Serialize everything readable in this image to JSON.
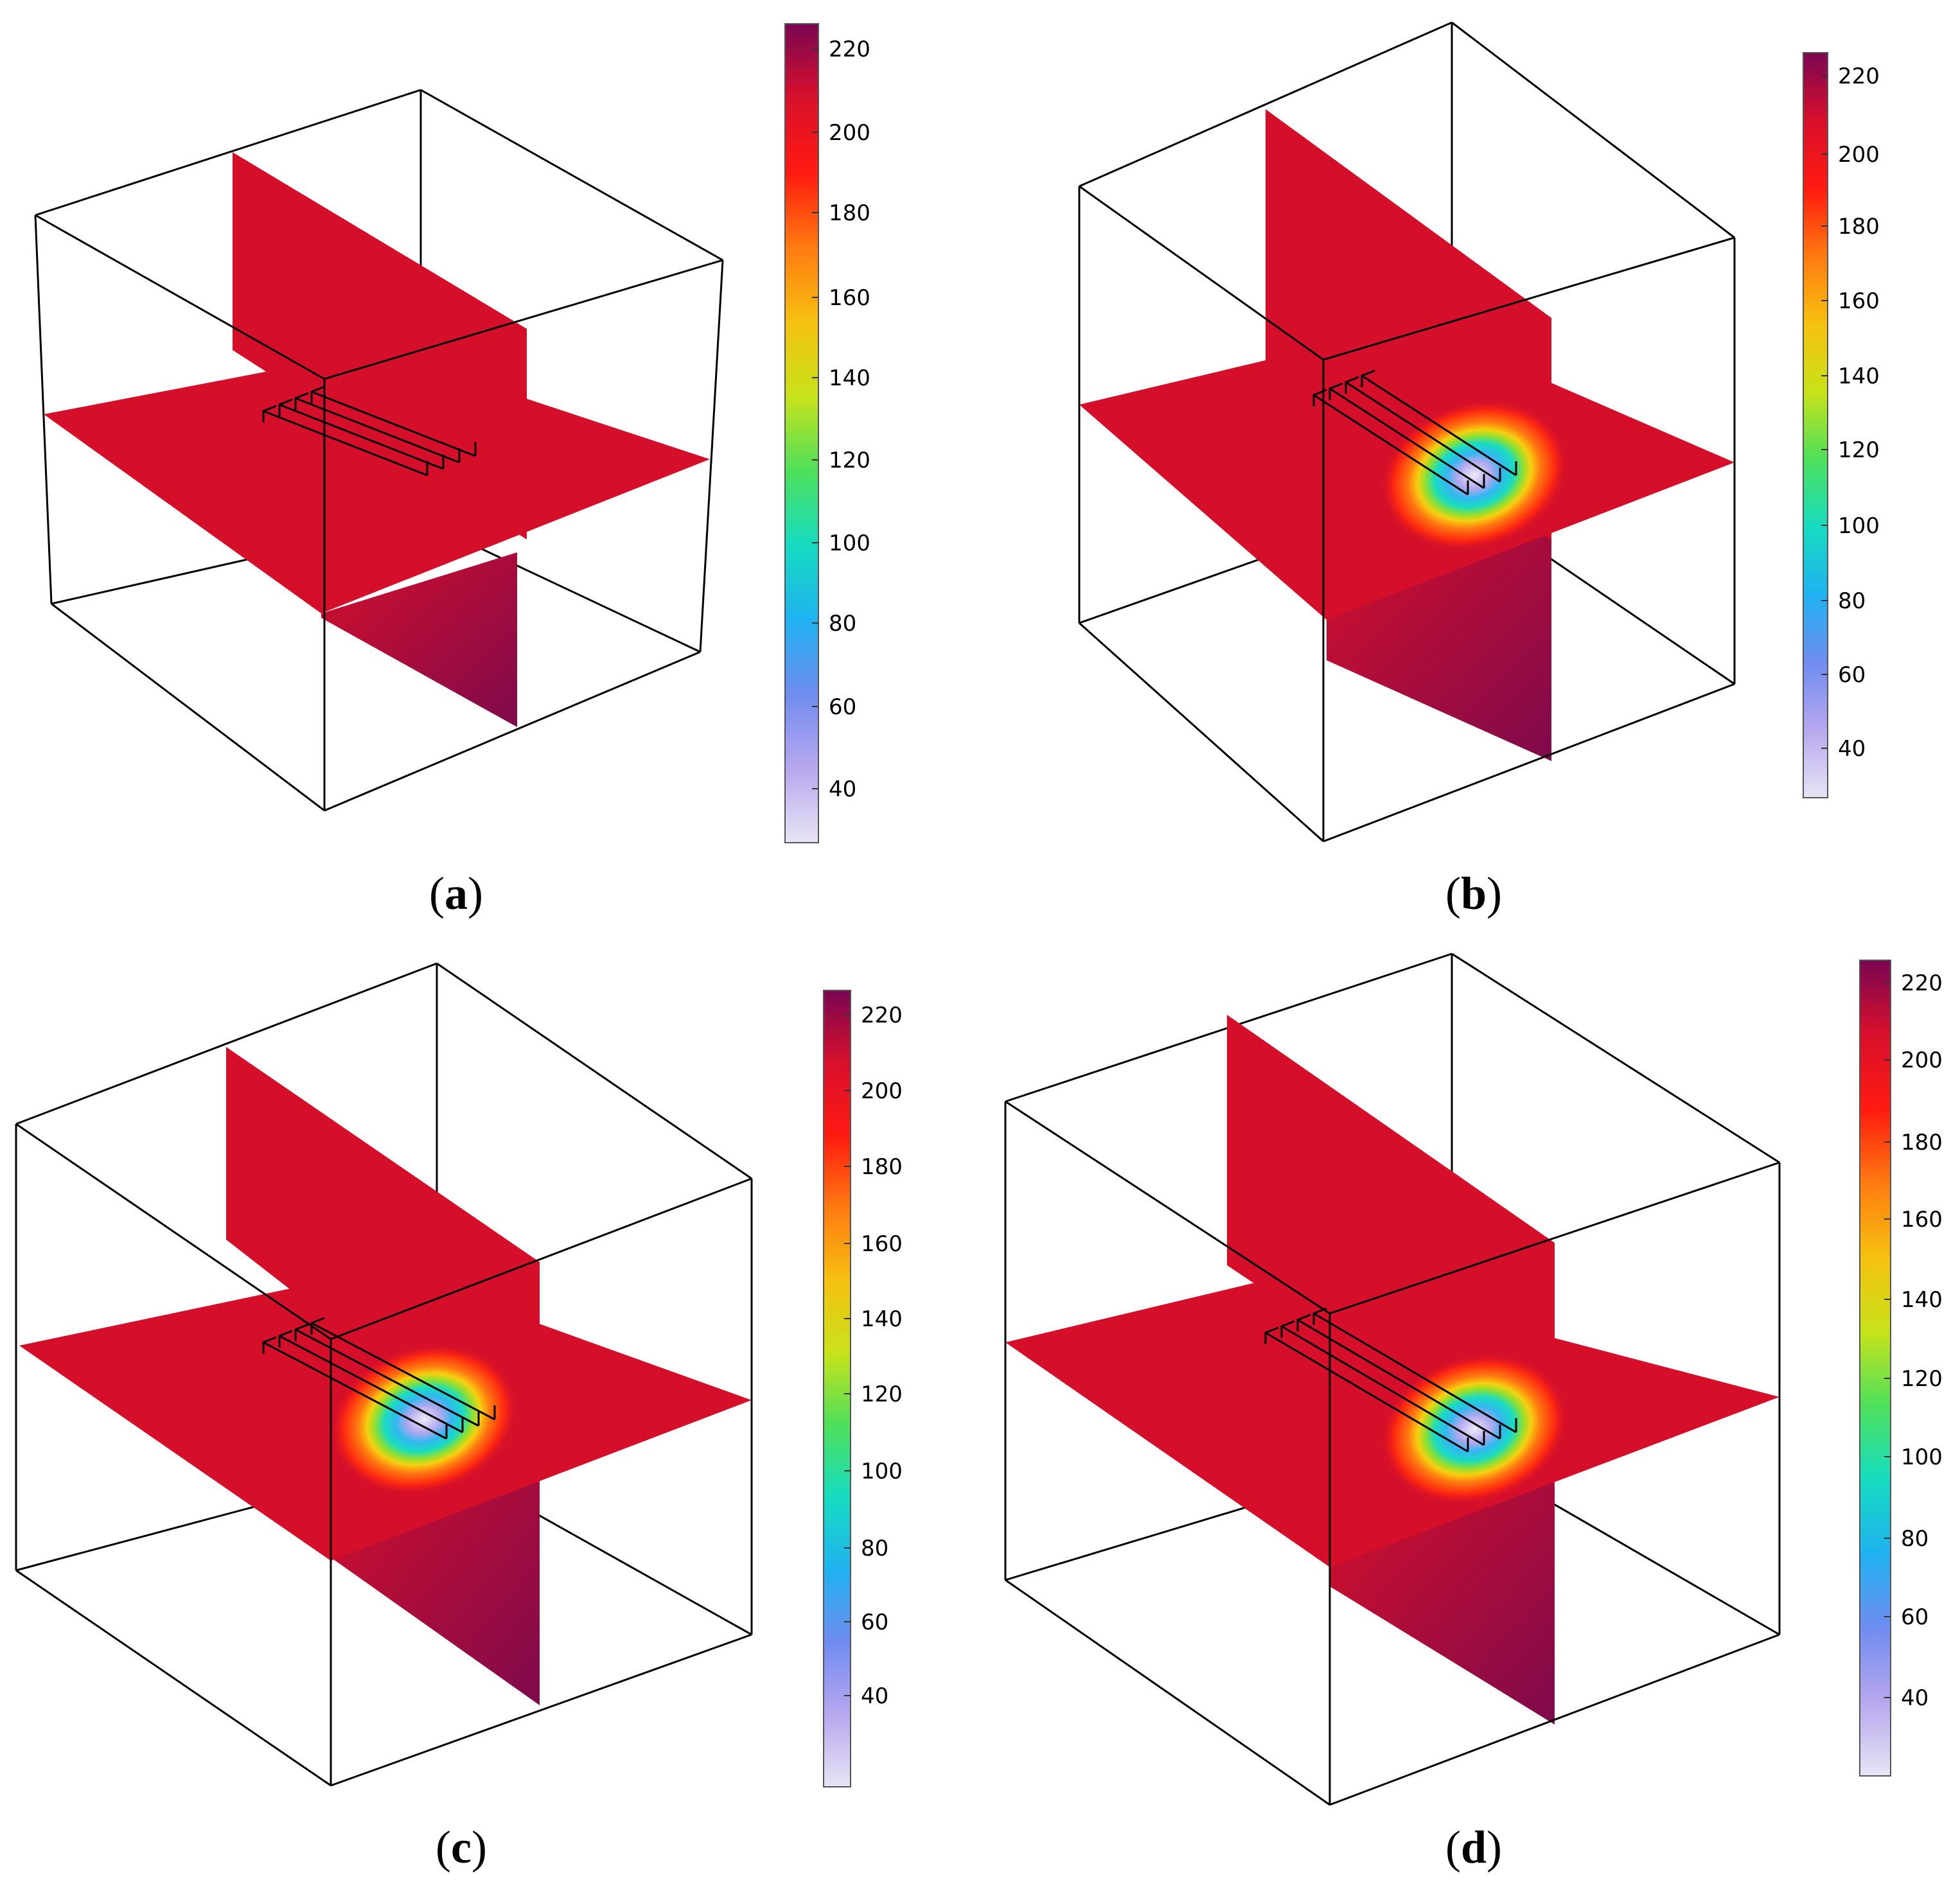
{
  "figure": {
    "panels": [
      {
        "id": "a",
        "caption_open": "(",
        "caption_letter": "a",
        "caption_close": ")",
        "cold_zone": 0.0
      },
      {
        "id": "b",
        "caption_open": "(",
        "caption_letter": "b",
        "caption_close": ")",
        "cold_zone": 1.0
      },
      {
        "id": "c",
        "caption_open": "(",
        "caption_letter": "c",
        "caption_close": ")",
        "cold_zone": 1.0
      },
      {
        "id": "d",
        "caption_open": "(",
        "caption_letter": "d",
        "caption_close": ")",
        "cold_zone": 1.0
      }
    ],
    "colorbar": {
      "ticks": [
        "220",
        "200",
        "180",
        "160",
        "140",
        "120",
        "100",
        "80",
        "60",
        "40"
      ],
      "range": [
        27,
        227
      ],
      "colors": [
        "#e8e4f4",
        "#b7a7ee",
        "#6f8cf0",
        "#1fb2f0",
        "#16dcc0",
        "#4fe05a",
        "#c8e21a",
        "#f6c110",
        "#ff7a10",
        "#ff1a10",
        "#d8102c",
        "#7a0652"
      ]
    },
    "colors": {
      "slice_red": "#d50f2a",
      "slice_dark": "#7e0a4c",
      "frame": "#000000"
    }
  }
}
